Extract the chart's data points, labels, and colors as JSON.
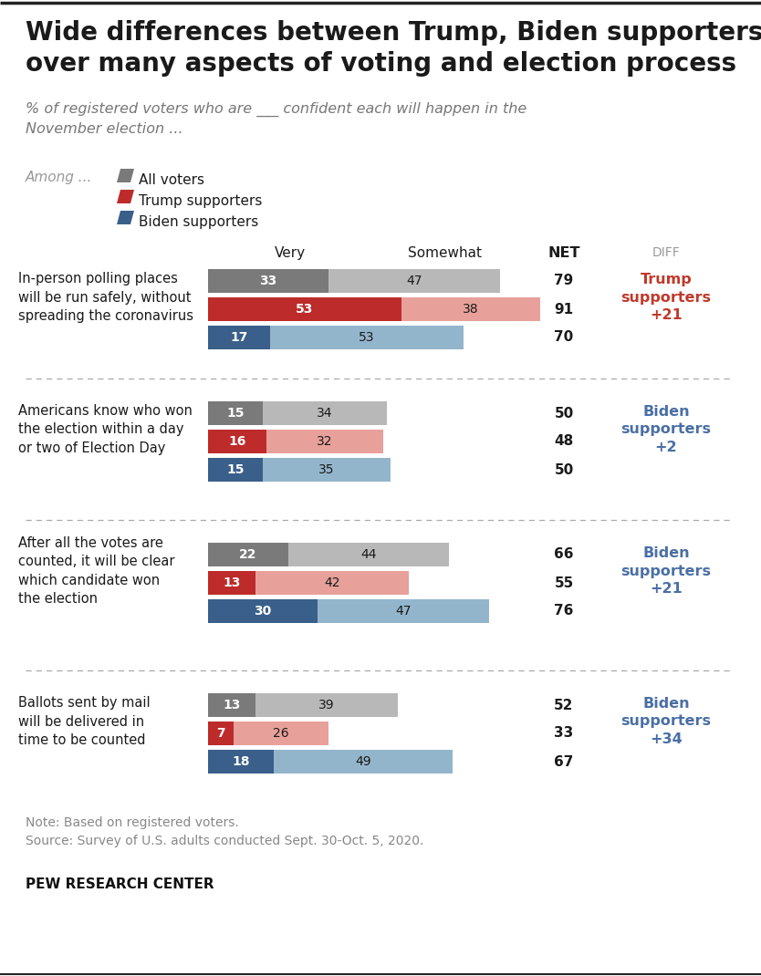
{
  "title": "Wide differences between Trump, Biden supporters\nover many aspects of voting and election process",
  "subtitle": "% of registered voters who are ___ confident each will happen in the\nNovember election ...",
  "legend_label": "Among ...",
  "legend_items": [
    "All voters",
    "Trump supporters",
    "Biden supporters"
  ],
  "groups": [
    {
      "label": "In-person polling places\nwill be run safely, without\nspreading the coronavirus",
      "rows": [
        {
          "very": 33,
          "somewhat": 47,
          "net": 79,
          "type": "all"
        },
        {
          "very": 53,
          "somewhat": 38,
          "net": 91,
          "type": "trump"
        },
        {
          "very": 17,
          "somewhat": 53,
          "net": 70,
          "type": "biden"
        }
      ],
      "diff_label": "Trump\nsupporters\n+21",
      "diff_color": "#c0392b"
    },
    {
      "label": "Americans know who won\nthe election within a day\nor two of Election Day",
      "rows": [
        {
          "very": 15,
          "somewhat": 34,
          "net": 50,
          "type": "all"
        },
        {
          "very": 16,
          "somewhat": 32,
          "net": 48,
          "type": "trump"
        },
        {
          "very": 15,
          "somewhat": 35,
          "net": 50,
          "type": "biden"
        }
      ],
      "diff_label": "Biden\nsupporters\n+2",
      "diff_color": "#4a6fa5"
    },
    {
      "label": "After all the votes are\ncounted, it will be clear\nwhich candidate won\nthe election",
      "rows": [
        {
          "very": 22,
          "somewhat": 44,
          "net": 66,
          "type": "all"
        },
        {
          "very": 13,
          "somewhat": 42,
          "net": 55,
          "type": "trump"
        },
        {
          "very": 30,
          "somewhat": 47,
          "net": 76,
          "type": "biden"
        }
      ],
      "diff_label": "Biden\nsupporters\n+21",
      "diff_color": "#4a6fa5"
    },
    {
      "label": "Ballots sent by mail\nwill be delivered in\ntime to be counted",
      "rows": [
        {
          "very": 13,
          "somewhat": 39,
          "net": 52,
          "type": "all"
        },
        {
          "very": 7,
          "somewhat": 26,
          "net": 33,
          "type": "trump"
        },
        {
          "very": 18,
          "somewhat": 49,
          "net": 67,
          "type": "biden"
        }
      ],
      "diff_label": "Biden\nsupporters\n+34",
      "diff_color": "#4a6fa5"
    }
  ],
  "colors": {
    "all_very": "#7a7a7a",
    "all_somewhat": "#b8b8b8",
    "trump_very": "#be2b2b",
    "trump_somewhat": "#e8a09a",
    "biden_very": "#3a5f8a",
    "biden_somewhat": "#93b5cc"
  },
  "note": "Note: Based on registered voters.\nSource: Survey of U.S. adults conducted Sept. 30-Oct. 5, 2020.",
  "footer": "PEW RESEARCH CENTER",
  "bg_color": "#ffffff"
}
